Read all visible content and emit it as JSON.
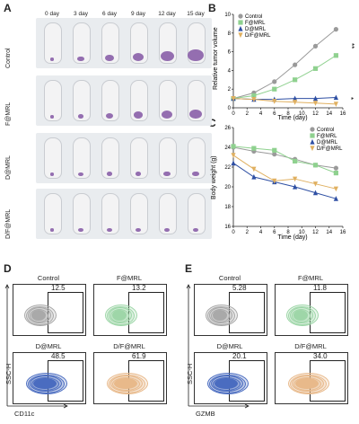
{
  "panels": {
    "A": "A",
    "B": "B",
    "C": "C",
    "D": "D",
    "E": "E"
  },
  "panelA": {
    "day_labels": [
      "0 day",
      "3 day",
      "6 day",
      "9 day",
      "12 day",
      "15 day"
    ],
    "row_labels": [
      "Control",
      "F@MRL",
      "D@MRL",
      "D/F@MRL"
    ],
    "tumor_color": "#8a5fa8"
  },
  "chart_data": [
    {
      "type": "line",
      "ylabel": "Relative tumor volume",
      "xlabel": "Time (day)",
      "x": [
        0,
        3,
        6,
        9,
        12,
        15
      ],
      "xlim": [
        0,
        16
      ],
      "xticks": [
        0,
        2,
        4,
        6,
        8,
        10,
        12,
        14,
        16
      ],
      "ylim": [
        0,
        10
      ],
      "yticks": [
        0,
        2,
        4,
        6,
        8,
        10
      ],
      "series": [
        {
          "name": "Control",
          "color": "#9a9a9a",
          "marker": "circle",
          "values": [
            1.0,
            1.6,
            2.8,
            4.6,
            6.6,
            8.4
          ]
        },
        {
          "name": "F@MRL",
          "color": "#8fd18f",
          "marker": "square",
          "values": [
            1.0,
            1.3,
            2.0,
            3.0,
            4.2,
            5.6
          ]
        },
        {
          "name": "D@MRL",
          "color": "#2e4fa3",
          "marker": "triangle",
          "values": [
            1.0,
            0.9,
            0.9,
            1.0,
            1.0,
            1.1
          ]
        },
        {
          "name": "D/F@MRL",
          "color": "#e0b060",
          "marker": "triangle-down",
          "values": [
            1.0,
            0.9,
            0.7,
            0.6,
            0.5,
            0.4
          ]
        }
      ],
      "annotations": [
        "**",
        "*"
      ]
    },
    {
      "type": "line",
      "ylabel": "Body weight (g)",
      "xlabel": "Time (day)",
      "x": [
        0,
        3,
        6,
        9,
        12,
        15
      ],
      "xlim": [
        0,
        16
      ],
      "xticks": [
        0,
        2,
        4,
        6,
        8,
        10,
        12,
        14,
        16
      ],
      "ylim": [
        16,
        26
      ],
      "yticks": [
        16,
        18,
        20,
        22,
        24,
        26
      ],
      "series": [
        {
          "name": "Control",
          "color": "#9a9a9a",
          "marker": "circle",
          "values": [
            24.0,
            23.6,
            23.3,
            22.8,
            22.2,
            21.9
          ]
        },
        {
          "name": "F@MRL",
          "color": "#8fd18f",
          "marker": "square",
          "values": [
            24.1,
            23.9,
            23.7,
            22.6,
            22.2,
            21.4
          ]
        },
        {
          "name": "D@MRL",
          "color": "#2e4fa3",
          "marker": "triangle",
          "values": [
            22.4,
            21.0,
            20.5,
            20.0,
            19.4,
            18.8
          ]
        },
        {
          "name": "D/F@MRL",
          "color": "#e0b060",
          "marker": "triangle-down",
          "values": [
            23.2,
            21.8,
            20.6,
            20.8,
            20.3,
            19.8
          ]
        }
      ]
    }
  ],
  "panelD": {
    "ylabel": "SSC-H",
    "xlabel": "CD11c",
    "plots": [
      {
        "title": "Control",
        "value": "12.5",
        "color": "#a9a9a9"
      },
      {
        "title": "F@MRL",
        "value": "13.2",
        "color": "#9ed6a8"
      },
      {
        "title": "D@MRL",
        "value": "48.5",
        "color": "#4a6cc0"
      },
      {
        "title": "D/F@MRL",
        "value": "61.9",
        "color": "#e8b98a"
      }
    ]
  },
  "panelE": {
    "ylabel": "SSC-H",
    "xlabel": "GZMB",
    "plots": [
      {
        "title": "Control",
        "value": "5.28",
        "color": "#a9a9a9"
      },
      {
        "title": "F@MRL",
        "value": "11.8",
        "color": "#9ed6a8"
      },
      {
        "title": "D@MRL",
        "value": "20.1",
        "color": "#4a6cc0"
      },
      {
        "title": "D/F@MRL",
        "value": "34.0",
        "color": "#e8b98a"
      }
    ]
  }
}
